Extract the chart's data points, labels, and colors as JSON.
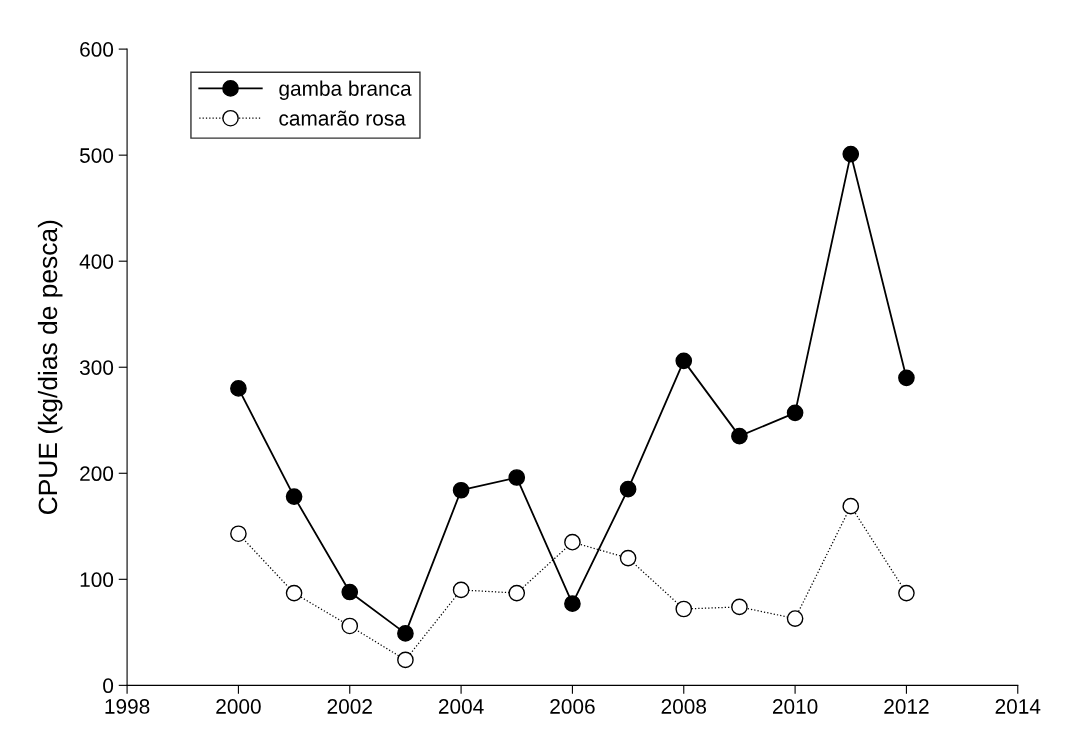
{
  "chart_data": {
    "type": "line",
    "ylabel": "CPUE (kg/dias de pesca)",
    "x": [
      2000,
      2001,
      2002,
      2003,
      2004,
      2005,
      2006,
      2007,
      2008,
      2009,
      2010,
      2011,
      2012
    ],
    "series": [
      {
        "name": "gamba branca",
        "color": "#000000",
        "values": [
          280,
          178,
          88,
          49,
          184,
          196,
          77,
          185,
          306,
          235,
          257,
          501,
          290
        ],
        "line_style": "solid",
        "marker": "circle"
      },
      {
        "name": "camarão rosa",
        "color": "#ffffff",
        "values": [
          143,
          87,
          56,
          24,
          90,
          87,
          135,
          120,
          72,
          74,
          63,
          169,
          87
        ],
        "line_style": "dotted",
        "marker": "circle"
      }
    ],
    "xlim": [
      1998,
      2014
    ],
    "xticks": [
      1998,
      2000,
      2002,
      2004,
      2006,
      2008,
      2010,
      2012,
      2014
    ],
    "ylim": [
      0,
      600
    ],
    "yticks": [
      0,
      100,
      200,
      300,
      400,
      500,
      600
    ],
    "grid": false,
    "legend": "top left"
  }
}
